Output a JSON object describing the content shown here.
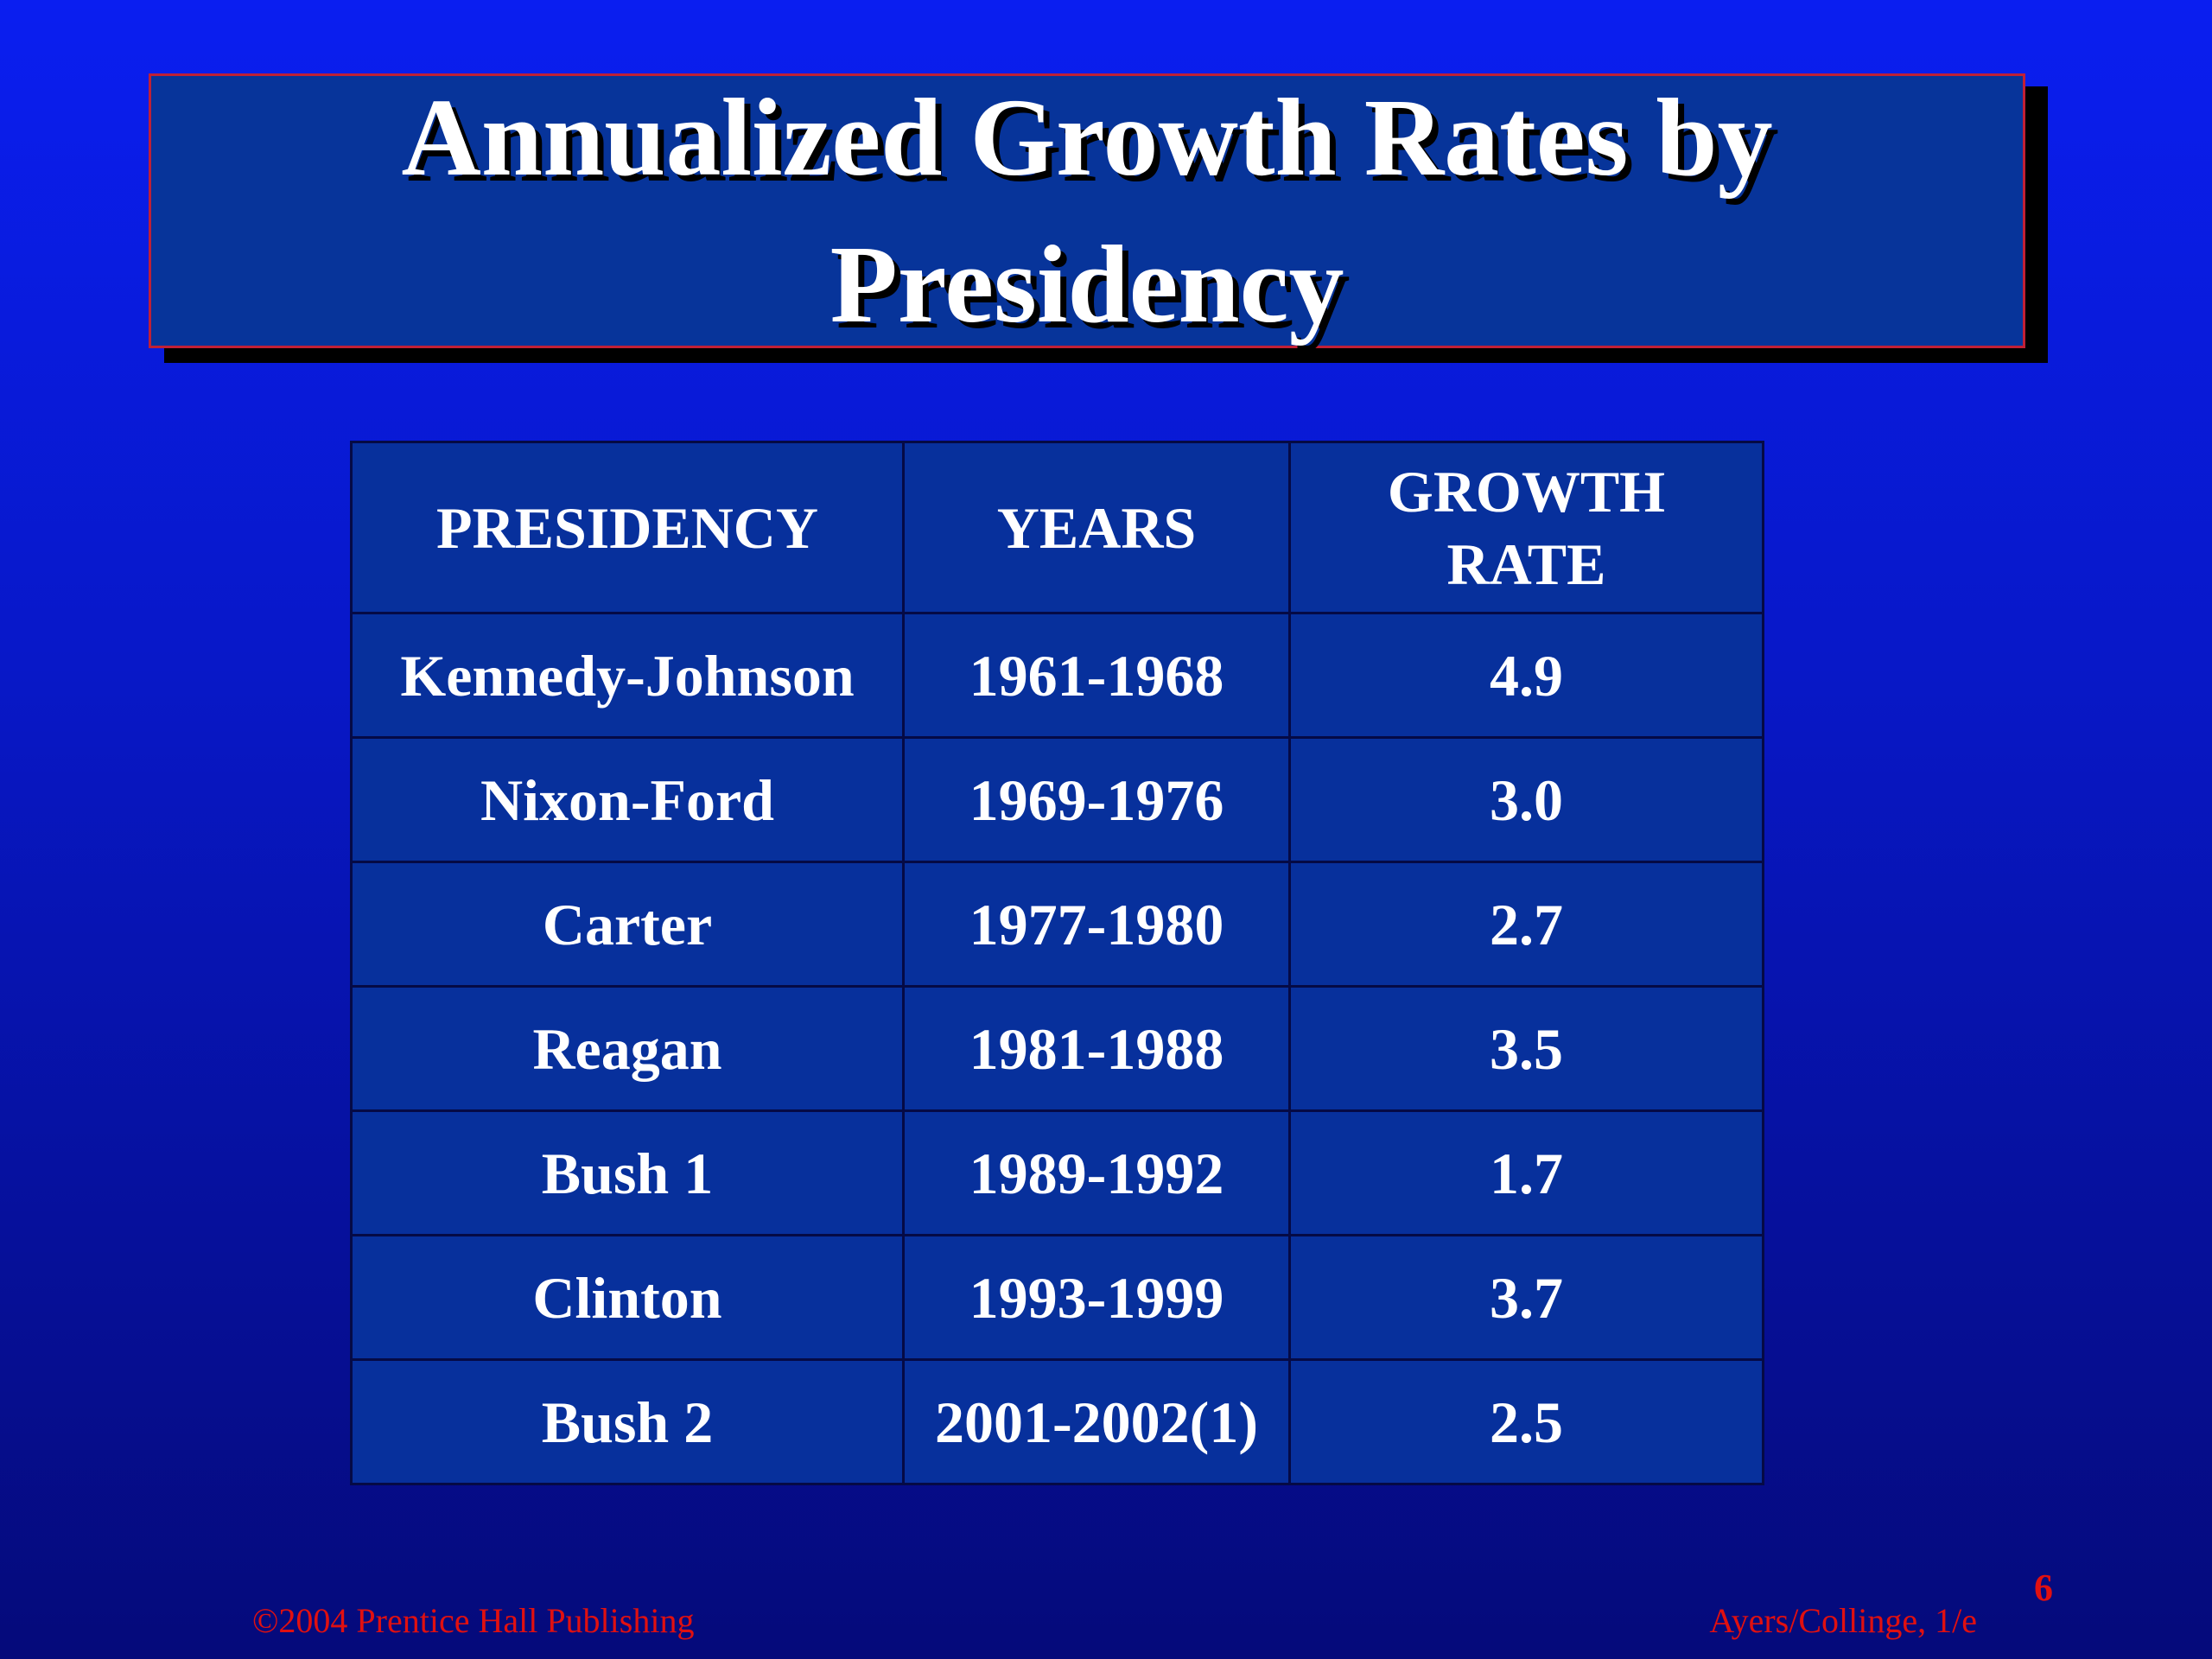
{
  "slide": {
    "title": "Annualized Growth Rates by Presidency",
    "page_number": "6",
    "footer_left": "©2004 Prentice Hall Publishing",
    "footer_right": "Ayers/Collinge, 1/e"
  },
  "table": {
    "headers": [
      "PRESIDENCY",
      "YEARS",
      "GROWTH RATE"
    ],
    "rows": [
      [
        "Kennedy-Johnson",
        "1961-1968",
        "4.9"
      ],
      [
        "Nixon-Ford",
        "1969-1976",
        "3.0"
      ],
      [
        "Carter",
        "1977-1980",
        "2.7"
      ],
      [
        "Reagan",
        "1981-1988",
        "3.5"
      ],
      [
        "Bush 1",
        "1989-1992",
        "1.7"
      ],
      [
        "Clinton",
        "1993-1999",
        "3.7"
      ],
      [
        "Bush 2",
        "2001-2002(1)",
        "2.5"
      ]
    ]
  },
  "colors": {
    "background": "#0a1ef0",
    "title_box": "#07349a",
    "title_border": "#c02036",
    "table_fill": "#07309c",
    "footer_text": "#e01010"
  }
}
